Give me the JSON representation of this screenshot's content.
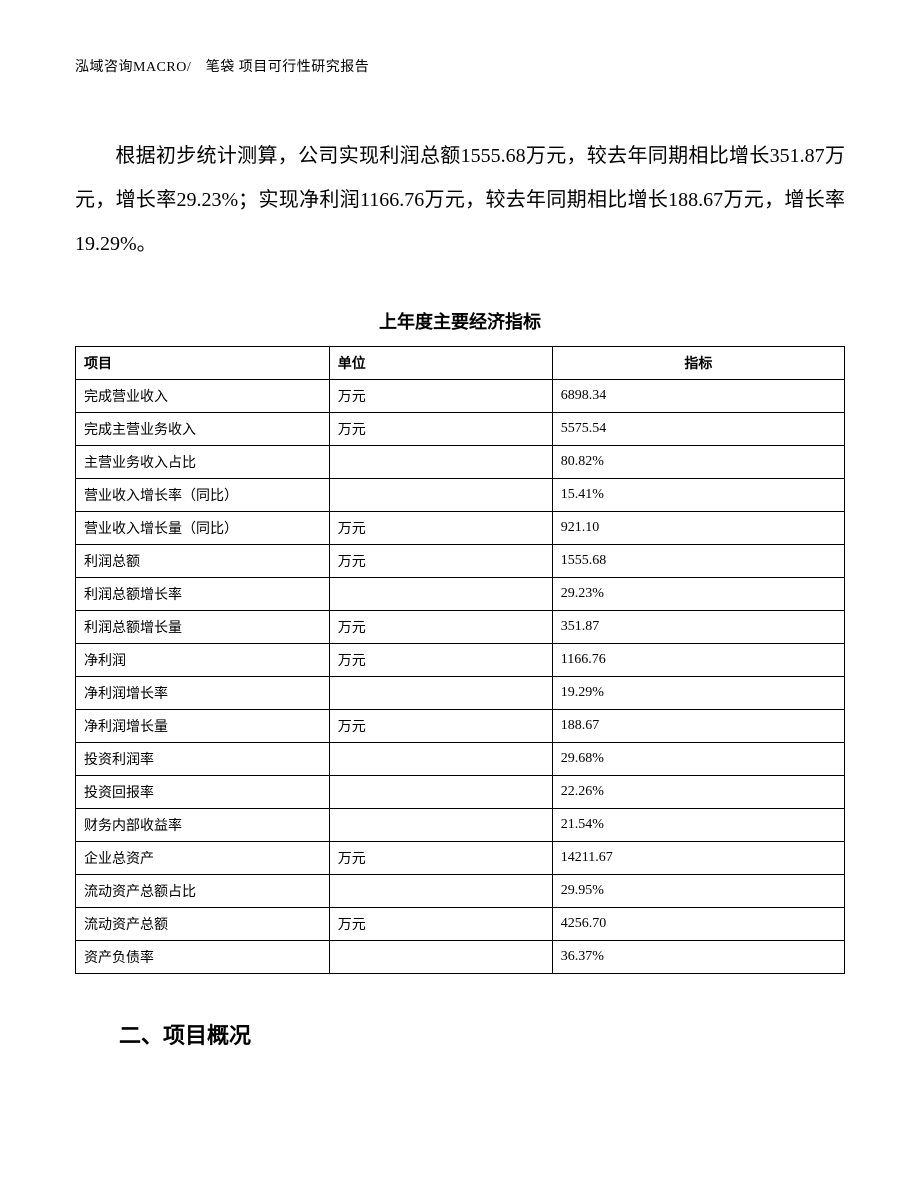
{
  "header": {
    "text": "泓域咨询MACRO/　笔袋 项目可行性研究报告"
  },
  "paragraph": {
    "text": "根据初步统计测算，公司实现利润总额1555.68万元，较去年同期相比增长351.87万元，增长率29.23%；实现净利润1166.76万元，较去年同期相比增长188.67万元，增长率19.29%。"
  },
  "table": {
    "title": "上年度主要经济指标",
    "columns": {
      "item": "项目",
      "unit": "单位",
      "value": "指标"
    },
    "rows": [
      {
        "item": "完成营业收入",
        "unit": "万元",
        "value": "6898.34"
      },
      {
        "item": "完成主营业务收入",
        "unit": "万元",
        "value": "5575.54"
      },
      {
        "item": "主营业务收入占比",
        "unit": "",
        "value": "80.82%"
      },
      {
        "item": "营业收入增长率（同比）",
        "unit": "",
        "value": "15.41%"
      },
      {
        "item": "营业收入增长量（同比）",
        "unit": "万元",
        "value": "921.10"
      },
      {
        "item": "利润总额",
        "unit": "万元",
        "value": "1555.68"
      },
      {
        "item": "利润总额增长率",
        "unit": "",
        "value": "29.23%"
      },
      {
        "item": "利润总额增长量",
        "unit": "万元",
        "value": "351.87"
      },
      {
        "item": "净利润",
        "unit": "万元",
        "value": "1166.76"
      },
      {
        "item": "净利润增长率",
        "unit": "",
        "value": "19.29%"
      },
      {
        "item": "净利润增长量",
        "unit": "万元",
        "value": "188.67"
      },
      {
        "item": "投资利润率",
        "unit": "",
        "value": "29.68%"
      },
      {
        "item": "投资回报率",
        "unit": "",
        "value": "22.26%"
      },
      {
        "item": "财务内部收益率",
        "unit": "",
        "value": "21.54%"
      },
      {
        "item": "企业总资产",
        "unit": "万元",
        "value": "14211.67"
      },
      {
        "item": "流动资产总额占比",
        "unit": "",
        "value": "29.95%"
      },
      {
        "item": "流动资产总额",
        "unit": "万元",
        "value": "4256.70"
      },
      {
        "item": "资产负债率",
        "unit": "",
        "value": "36.37%"
      }
    ]
  },
  "section_heading": "二、项目概况"
}
